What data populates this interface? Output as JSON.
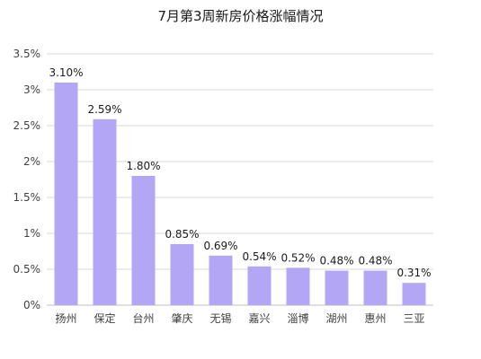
{
  "chart_data": {
    "type": "bar",
    "title": "7月第3周新房价格涨幅情况",
    "categories": [
      "扬州",
      "保定",
      "台州",
      "肇庆",
      "无锡",
      "嘉兴",
      "淄博",
      "湖州",
      "惠州",
      "三亚"
    ],
    "values": [
      3.1,
      2.59,
      1.8,
      0.85,
      0.69,
      0.54,
      0.52,
      0.48,
      0.48,
      0.31
    ],
    "value_labels": [
      "3.10%",
      "2.59%",
      "1.80%",
      "0.85%",
      "0.69%",
      "0.54%",
      "0.52%",
      "0.48%",
      "0.48%",
      "0.31%"
    ],
    "y_ticks": [
      0,
      0.5,
      1,
      1.5,
      2,
      2.5,
      3,
      3.5
    ],
    "y_tick_labels": [
      "0%",
      "0.5%",
      "1%",
      "1.5%",
      "2%",
      "2.5%",
      "3%",
      "3.5%"
    ],
    "ylim": [
      0,
      3.5
    ],
    "xlabel": "",
    "ylabel": "",
    "grid": true,
    "legend": "none",
    "bar_color": "#b3a6f5",
    "grid_color": "#d9d9d9",
    "text_color": "#404040"
  }
}
